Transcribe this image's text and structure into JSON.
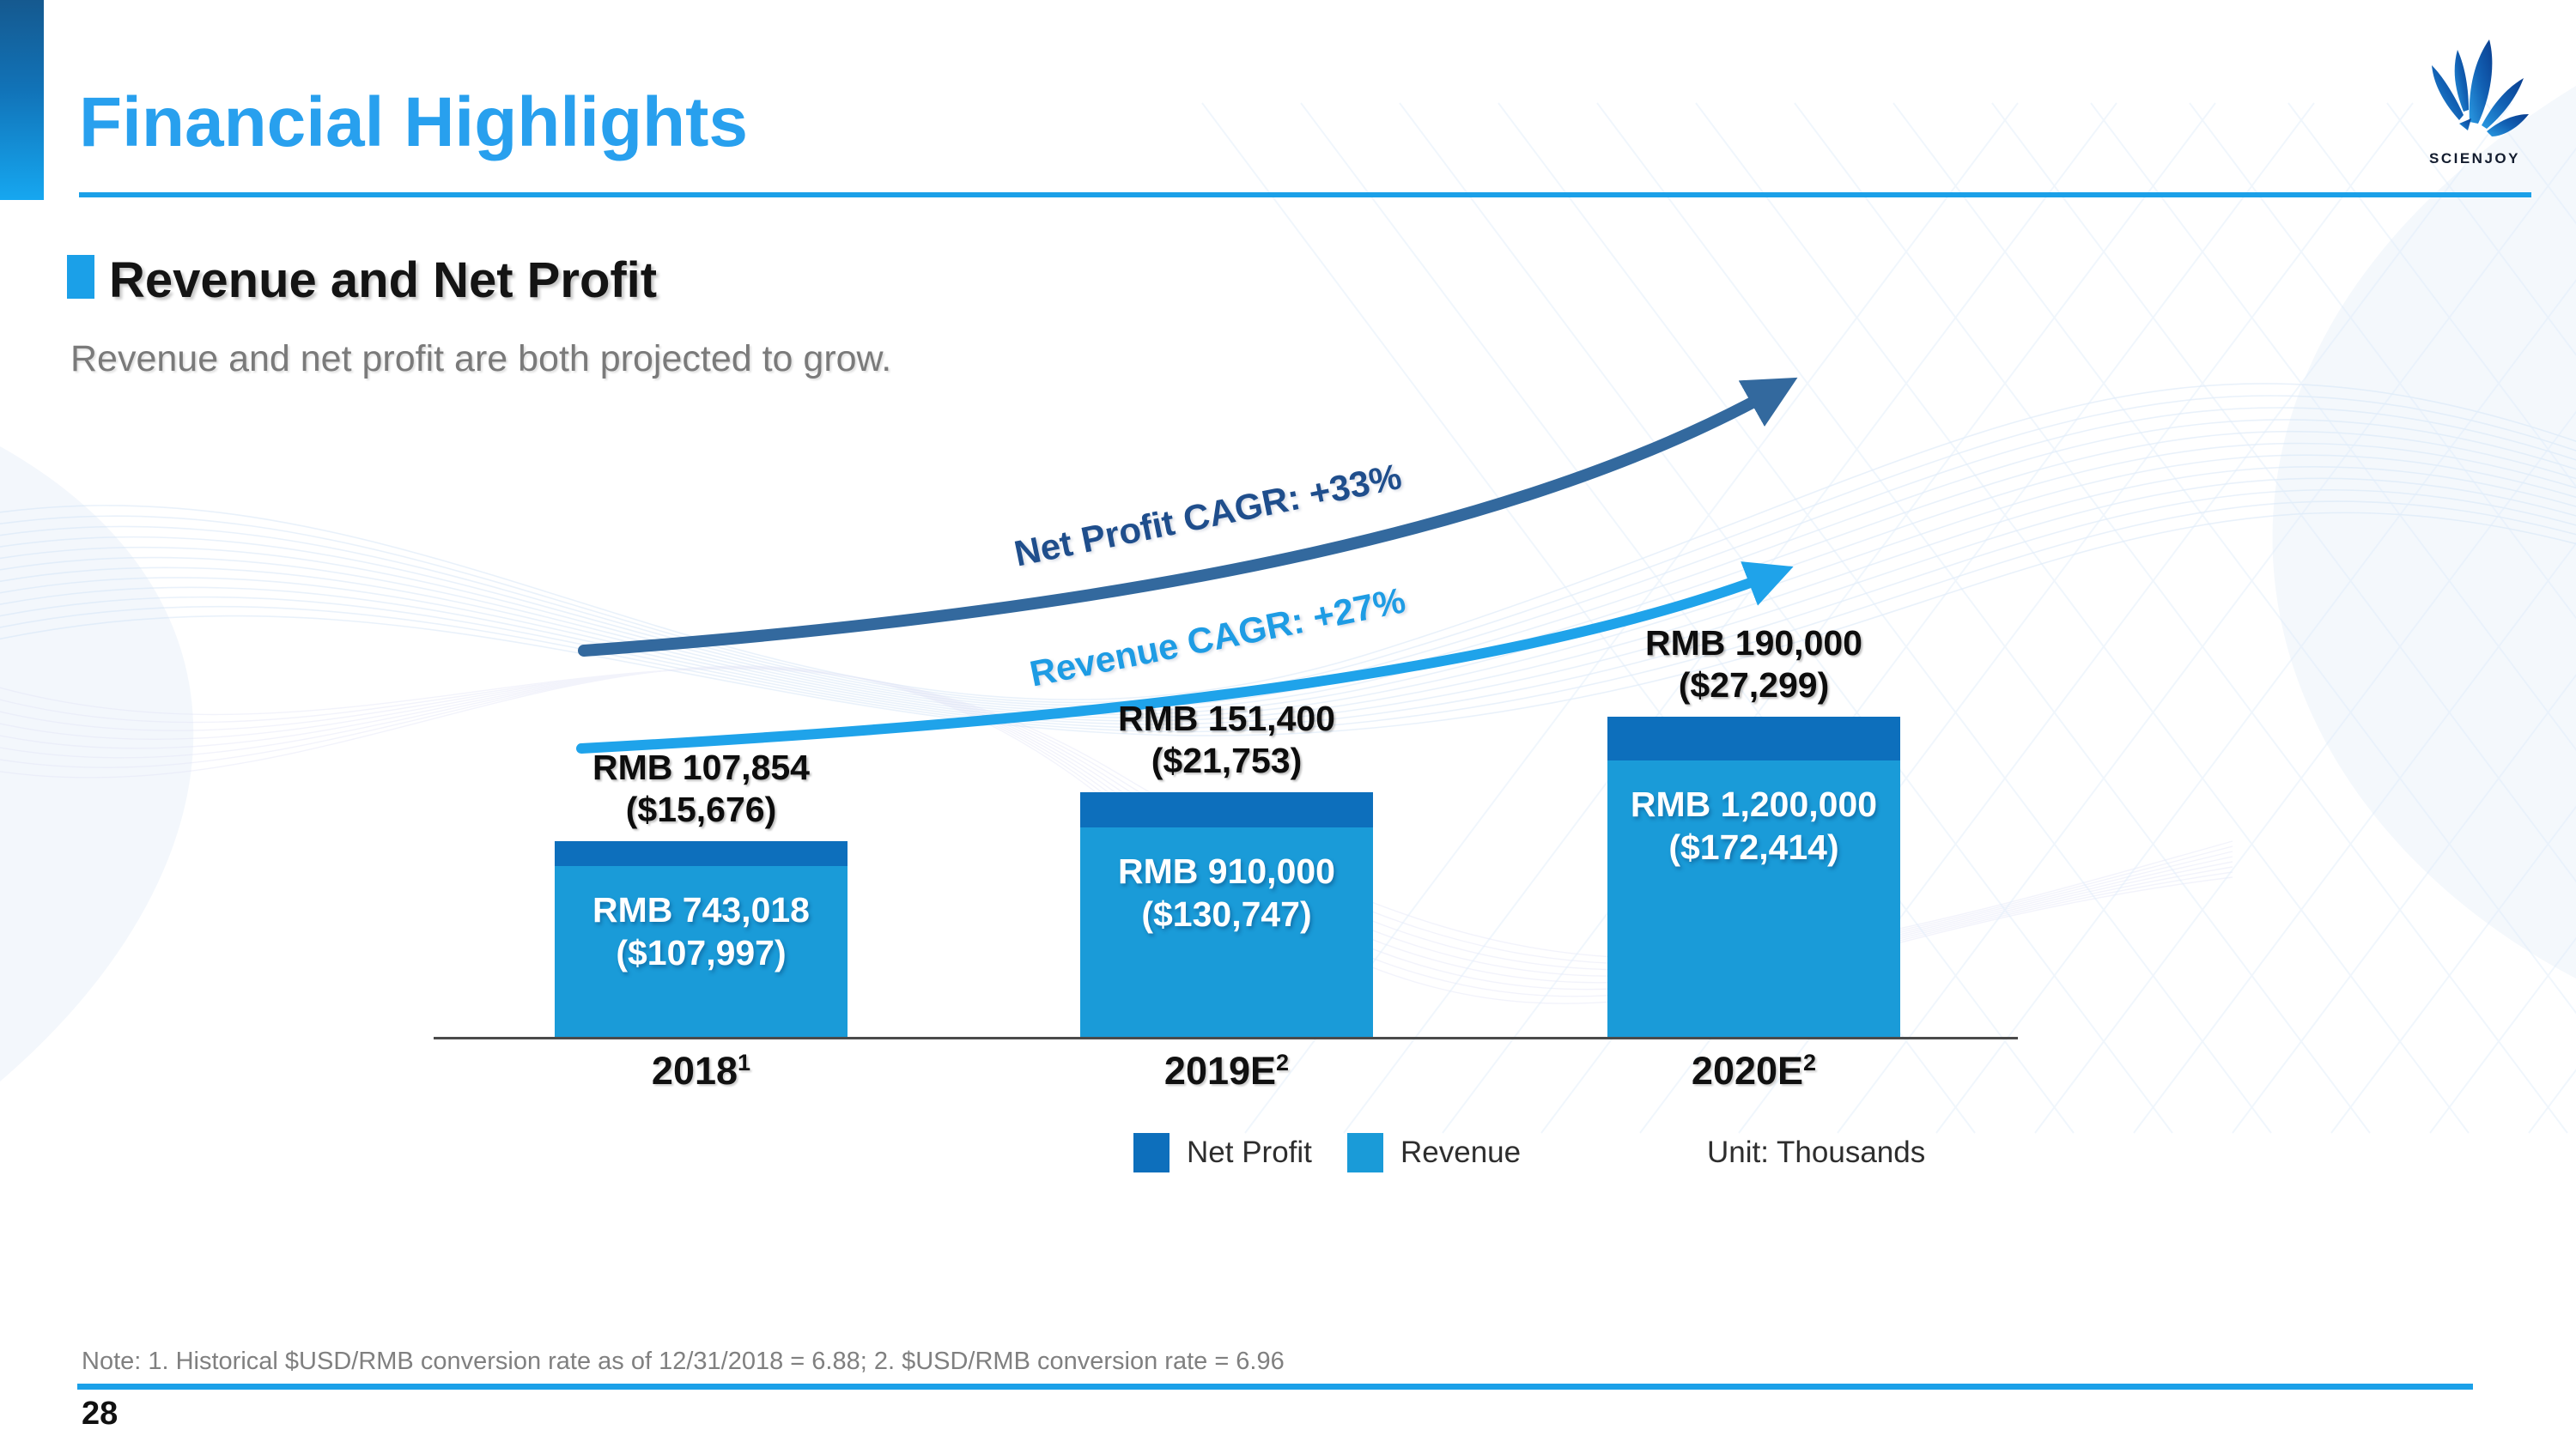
{
  "header": {
    "title": "Financial Highlights",
    "logo_text": "SCIENJOY"
  },
  "section": {
    "heading": "Revenue and Net Profit",
    "subtitle": "Revenue and net profit are both projected to grow."
  },
  "chart_data": {
    "type": "bar",
    "stacked": true,
    "title": "Revenue and Net Profit",
    "unit_note": "Unit: Thousands",
    "categories": [
      "2018",
      "2019E",
      "2020E"
    ],
    "category_superscripts": [
      "1",
      "2",
      "2"
    ],
    "series": [
      {
        "name": "Revenue",
        "values": [
          743018,
          910000,
          1200000
        ],
        "usd_values": [
          107997,
          130747,
          172414
        ],
        "bar_labels": [
          [
            "RMB 743,018",
            "($107,997)"
          ],
          [
            "RMB 910,000",
            "($130,747)"
          ],
          [
            "RMB 1,200,000",
            "($172,414)"
          ]
        ]
      },
      {
        "name": "Net Profit",
        "values": [
          107854,
          151400,
          190000
        ],
        "usd_values": [
          15676,
          21753,
          27299
        ],
        "bar_labels": [
          [
            "RMB 107,854",
            "($15,676)"
          ],
          [
            "RMB 151,400",
            "($21,753)"
          ],
          [
            "RMB 190,000",
            "($27,299)"
          ]
        ]
      }
    ],
    "annotations": [
      {
        "id": "net_profit_cagr",
        "text": "Net Profit CAGR: +33%"
      },
      {
        "id": "revenue_cagr",
        "text": "Revenue CAGR: +27%"
      }
    ],
    "legend_position": "bottom",
    "grid": false
  },
  "legend": {
    "net_profit": "Net Profit",
    "revenue": "Revenue",
    "unit": "Unit: Thousands"
  },
  "footer": {
    "note": "Note: 1. Historical $USD/RMB conversion rate as of 12/31/2018 = 6.88;  2. $USD/RMB conversion rate = 6.96",
    "page_number": "28"
  },
  "colors": {
    "accent": "#1ba0e8",
    "title_text": "#28a0ee",
    "revenue_bar": "#1a9bd8",
    "net_profit_bar": "#0d6fbc",
    "revenue_curve": "#1fa3ea",
    "net_profit_curve": "#33699e",
    "net_profit_cagr_text": "#1f4e8c",
    "revenue_cagr_text": "#1e9ce4",
    "axis": "#4a4a4a"
  }
}
